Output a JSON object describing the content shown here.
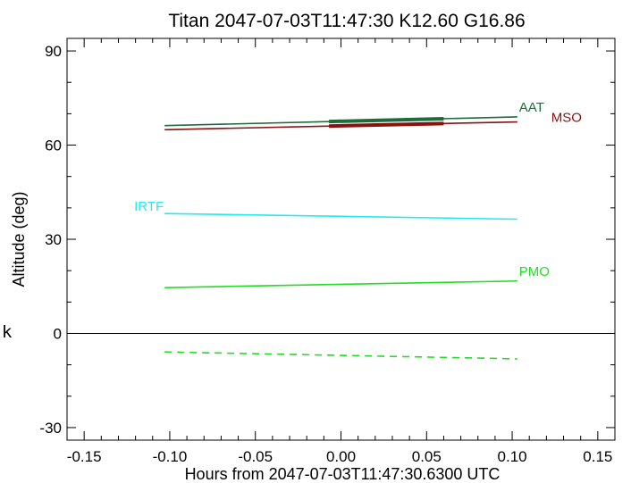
{
  "chart_data": {
    "type": "line",
    "title": "Titan 2047-07-03T11:47:30  K12.60  G16.86",
    "xlabel": "Hours from 2047-07-03T11:47:30.6300 UTC",
    "ylabel": "Altitude (deg)",
    "xlim": [
      -0.16,
      0.16
    ],
    "ylim": [
      -34,
      94
    ],
    "x_ticks": [
      -0.15,
      -0.1,
      -0.05,
      0.0,
      0.05,
      0.1,
      0.15
    ],
    "x_tick_labels": [
      "-0.15",
      "-0.10",
      "-0.05",
      "0.00",
      "0.05",
      "0.10",
      "0.15"
    ],
    "y_ticks": [
      -30,
      0,
      30,
      60,
      90
    ],
    "y_tick_labels": [
      "-30",
      "0",
      "30",
      "60",
      "90"
    ],
    "grid": false,
    "reference_line_y": 0,
    "side_mark": "k",
    "series": [
      {
        "name": "AAT",
        "color": "#1e6b3c",
        "x": [
          -0.103,
          0.103
        ],
        "y": [
          66.2,
          69.0
        ],
        "thick": [
          -0.007,
          0.06
        ]
      },
      {
        "name": "MSO",
        "color": "#8b1010",
        "x": [
          -0.103,
          0.103
        ],
        "y": [
          64.9,
          67.4
        ],
        "thick": [
          -0.007,
          0.06
        ]
      },
      {
        "name": "IRTF",
        "color": "#22eaf0",
        "x": [
          -0.103,
          0.103
        ],
        "y": [
          38.2,
          36.4
        ]
      },
      {
        "name": "PMO",
        "color": "#22dd22",
        "x": [
          -0.103,
          0.103
        ],
        "y": [
          14.6,
          16.7
        ]
      },
      {
        "name": "",
        "color": "#22dd22",
        "dashed": true,
        "x": [
          -0.103,
          0.103
        ],
        "y": [
          -5.9,
          -8.1
        ]
      }
    ]
  }
}
